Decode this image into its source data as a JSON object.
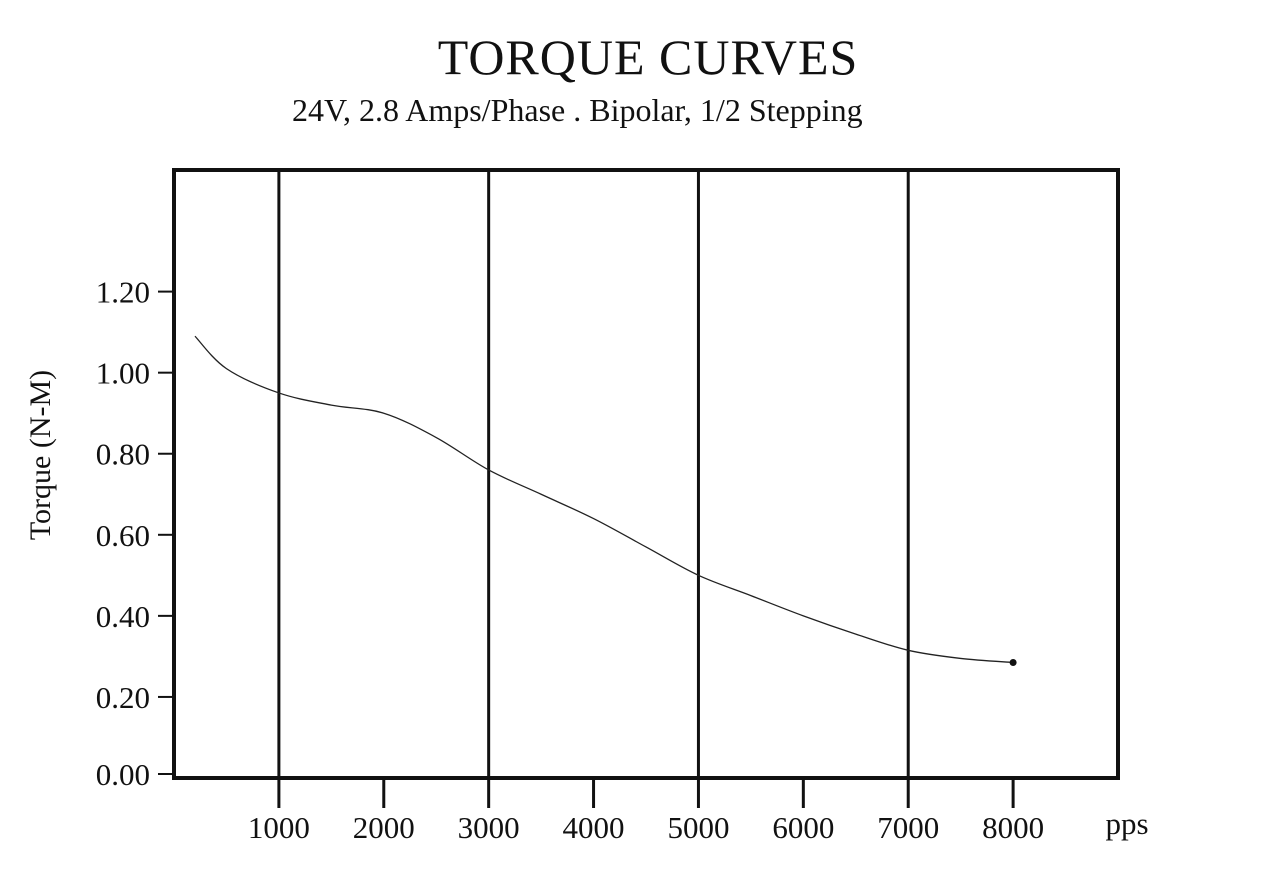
{
  "chart_data": {
    "type": "line",
    "title": "TORQUE CURVES",
    "subtitle": "24V, 2.8 Amps/Phase . Bipolar, 1/2 Stepping",
    "xlabel": "pps",
    "ylabel": "Torque (N-M)",
    "xlim": [
      0,
      9000
    ],
    "ylim": [
      0,
      1.5
    ],
    "x_ticks": [
      1000,
      2000,
      3000,
      4000,
      5000,
      6000,
      7000,
      8000
    ],
    "x_tick_labels": [
      "1000",
      "2000",
      "3000",
      "4000",
      "5000",
      "6000",
      "7000",
      "8000"
    ],
    "y_ticks": [
      0,
      0.2,
      0.4,
      0.6,
      0.8,
      1.0,
      1.2
    ],
    "y_tick_labels": [
      "0.00",
      "0.20",
      "0.40",
      "0.60",
      "0.80",
      "1.00",
      "1.20"
    ],
    "vertical_gridlines_at": [
      1000,
      3000,
      5000,
      7000
    ],
    "grid": "vertical only",
    "line_color": "#222222",
    "series": [
      {
        "x": [
          200,
          500,
          1000,
          1500,
          2000,
          2500,
          3000,
          3500,
          4000,
          4500,
          5000,
          5500,
          6000,
          6500,
          7000,
          7500,
          8000
        ],
        "y": [
          1.09,
          1.01,
          0.95,
          0.92,
          0.9,
          0.84,
          0.76,
          0.7,
          0.64,
          0.57,
          0.5,
          0.45,
          0.4,
          0.355,
          0.315,
          0.295,
          0.285
        ]
      }
    ]
  }
}
